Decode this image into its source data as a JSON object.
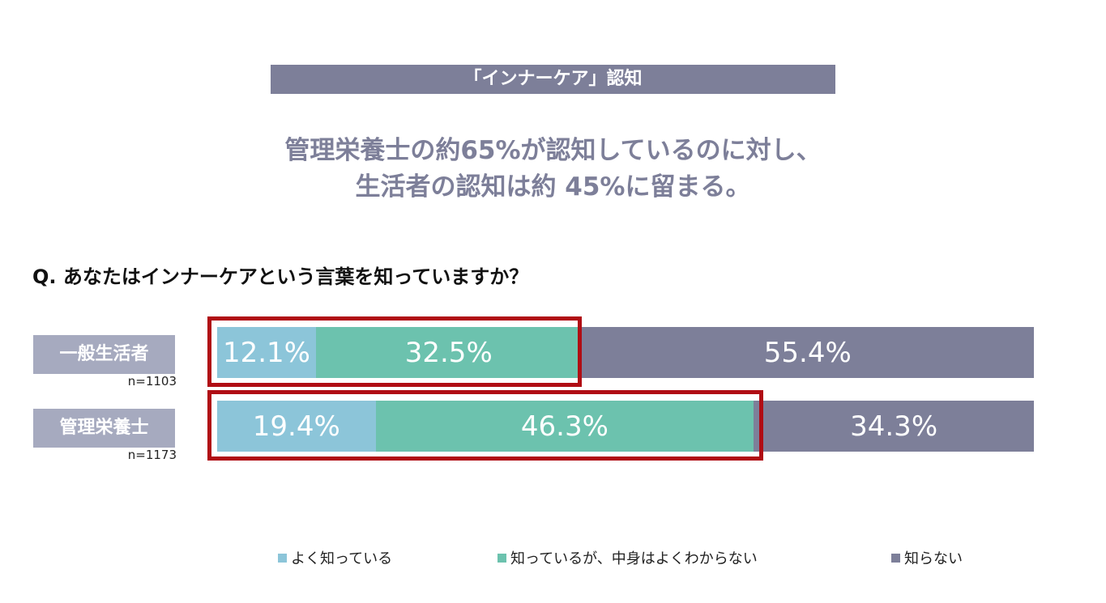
{
  "header": {
    "title": "「インナーケア」認知",
    "headline_1": "管理栄養士の約65%が認知しているのに対し、",
    "headline_2": "生活者の認知は約 45%に留まる。"
  },
  "chart_data": {
    "type": "bar",
    "stacked": true,
    "orientation": "horizontal",
    "question": "Q. あなたはインナーケアという言葉を知っていますか？",
    "categories": [
      "一般生活者",
      "管理栄養士"
    ],
    "sample_sizes": [
      "n=1103",
      "n=1173"
    ],
    "series": [
      {
        "name": "よく知っている",
        "color": "#8cc5d9",
        "values": [
          12.1,
          19.4
        ],
        "labels": [
          "12.1%",
          "19.4%"
        ]
      },
      {
        "name": "知っているが、中身はよくわからない",
        "color": "#6cc2ae",
        "values": [
          32.5,
          46.3
        ],
        "labels": [
          "32.5%",
          "46.3%"
        ]
      },
      {
        "name": "知らない",
        "color": "#7d7f99",
        "values": [
          55.4,
          34.3
        ],
        "labels": [
          "55.4%",
          "34.3%"
        ]
      }
    ],
    "highlight_color": "#b00d14",
    "xlim": [
      0,
      100
    ],
    "legend": "bottom"
  }
}
